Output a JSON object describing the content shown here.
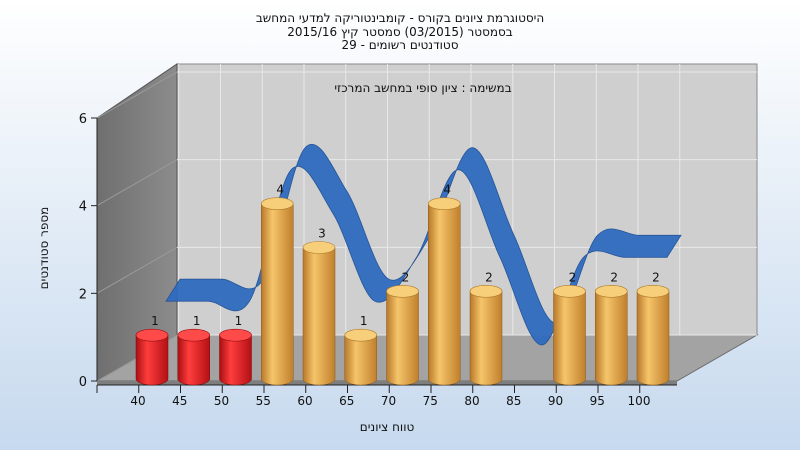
{
  "chart_data": {
    "type": "bar",
    "title_lines": [
      "היסטוגרמת ציונים בקורס - קומבינטוריקה למדעי המחשב",
      "בסמסטר  (03/2015)  סמסטר קיץ 2015/16",
      "סטודנטים רשומים - 29"
    ],
    "subtitle": "במשימה : ציון סופי במחשב המרכזי",
    "xlabel": "טווח ציונים",
    "ylabel": "מספר סטודנטים",
    "ylim": [
      0,
      6
    ],
    "yticks": [
      0,
      2,
      4,
      6
    ],
    "categories": [
      "40",
      "45",
      "50",
      "55",
      "60",
      "65",
      "70",
      "75",
      "80",
      "85",
      "90",
      "95",
      "100"
    ],
    "values": [
      1,
      1,
      1,
      4,
      3,
      1,
      2,
      4,
      2,
      0,
      2,
      2,
      2
    ],
    "data_labels": [
      "1",
      "1",
      "1",
      "4",
      "3",
      "1",
      "2",
      "4",
      "2",
      "",
      "2",
      "2",
      "2"
    ],
    "bar_colors": [
      "#e0161c",
      "#e0161c",
      "#e0161c",
      "#e3a340",
      "#e3a340",
      "#e3a340",
      "#e3a340",
      "#e3a340",
      "#e3a340",
      "#e3a340",
      "#e3a340",
      "#e3a340",
      "#e3a340"
    ],
    "trend_color": "#2f6bbf",
    "background_color": "#cfdff0"
  }
}
